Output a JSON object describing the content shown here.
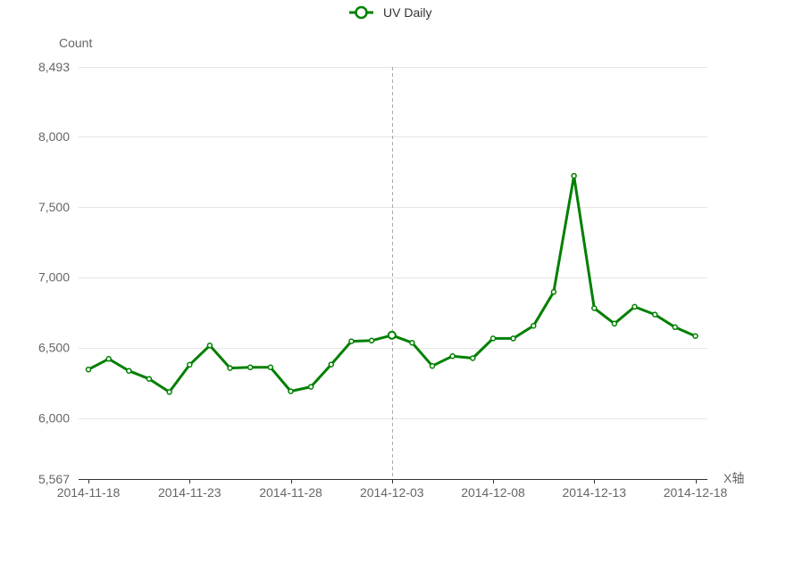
{
  "chart_data": {
    "type": "line",
    "legend": {
      "position": "top-center",
      "label": "UV Daily"
    },
    "ylabel": "Count",
    "xlabel": "X轴",
    "ylim": [
      5567,
      8493
    ],
    "yticks": [
      5567,
      6000,
      6500,
      7000,
      7500,
      8000,
      8493
    ],
    "ytick_labels": [
      "5,567",
      "6,000",
      "6,500",
      "7,000",
      "7,500",
      "8,000",
      "8,493"
    ],
    "xticks": [
      "2014-11-18",
      "2014-11-23",
      "2014-11-28",
      "2014-12-03",
      "2014-12-08",
      "2014-12-13",
      "2014-12-18"
    ],
    "grid": true,
    "highlighted_x": "2014-12-03",
    "x": [
      "2014-11-18",
      "2014-11-19",
      "2014-11-20",
      "2014-11-21",
      "2014-11-22",
      "2014-11-23",
      "2014-11-24",
      "2014-11-25",
      "2014-11-26",
      "2014-11-27",
      "2014-11-28",
      "2014-11-29",
      "2014-11-30",
      "2014-12-01",
      "2014-12-02",
      "2014-12-03",
      "2014-12-04",
      "2014-12-05",
      "2014-12-06",
      "2014-12-07",
      "2014-12-08",
      "2014-12-09",
      "2014-12-10",
      "2014-12-11",
      "2014-12-12",
      "2014-12-13",
      "2014-12-14",
      "2014-12-15",
      "2014-12-16",
      "2014-12-17",
      "2014-12-18"
    ],
    "series": [
      {
        "name": "UV Daily",
        "color": "#008000",
        "values": [
          6345,
          6420,
          6335,
          6278,
          6185,
          6378,
          6515,
          6355,
          6360,
          6360,
          6190,
          6222,
          6380,
          6545,
          6550,
          6588,
          6535,
          6370,
          6440,
          6425,
          6565,
          6565,
          6655,
          6895,
          7720,
          6780,
          6670,
          6790,
          6735,
          6645,
          6582
        ]
      }
    ],
    "colors": {
      "line": "#008000",
      "axis": "#333333",
      "grid": "#e6e6e6",
      "text": "#666666",
      "pointer": "#aaaaaa",
      "point_fill": "#ffffff"
    }
  }
}
